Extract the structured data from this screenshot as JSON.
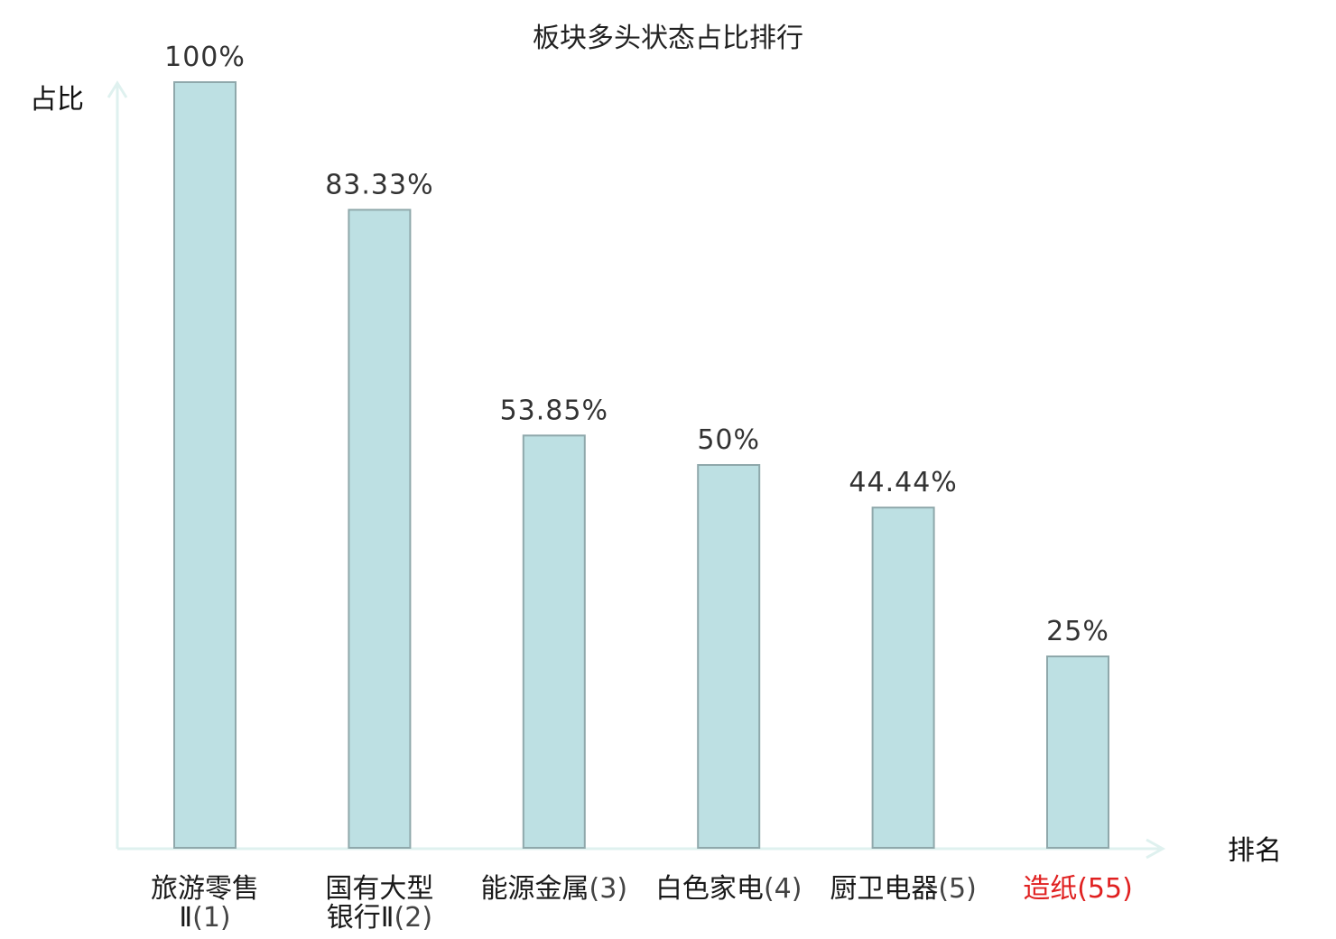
{
  "chart_data": {
    "type": "bar",
    "title": "板块多头状态占比排行",
    "ylabel": "占比",
    "xlabel": "排名",
    "ylim": [
      0,
      100
    ],
    "categories": [
      {
        "name_lines": [
          "旅游零售",
          "Ⅱ"
        ],
        "rank": "(1)",
        "highlight": false
      },
      {
        "name_lines": [
          "国有大型",
          "银行Ⅱ"
        ],
        "rank": "(2)",
        "highlight": false
      },
      {
        "name_lines": [
          "能源金属"
        ],
        "rank": "(3)",
        "highlight": false
      },
      {
        "name_lines": [
          "白色家电"
        ],
        "rank": "(4)",
        "highlight": false
      },
      {
        "name_lines": [
          "厨卫电器"
        ],
        "rank": "(5)",
        "highlight": false
      },
      {
        "name_lines": [
          "造纸"
        ],
        "rank": "(55)",
        "highlight": true
      }
    ],
    "values": [
      100,
      83.33,
      53.85,
      50,
      44.44,
      25
    ],
    "value_labels": [
      "100%",
      "83.33%",
      "53.85%",
      "50%",
      "44.44%",
      "25%"
    ],
    "colors": {
      "bar_fill": "#bde0e3",
      "bar_stroke": "#8fa8ab",
      "axis": "#dff1ef",
      "highlight": "#e02020"
    },
    "grid": false
  }
}
